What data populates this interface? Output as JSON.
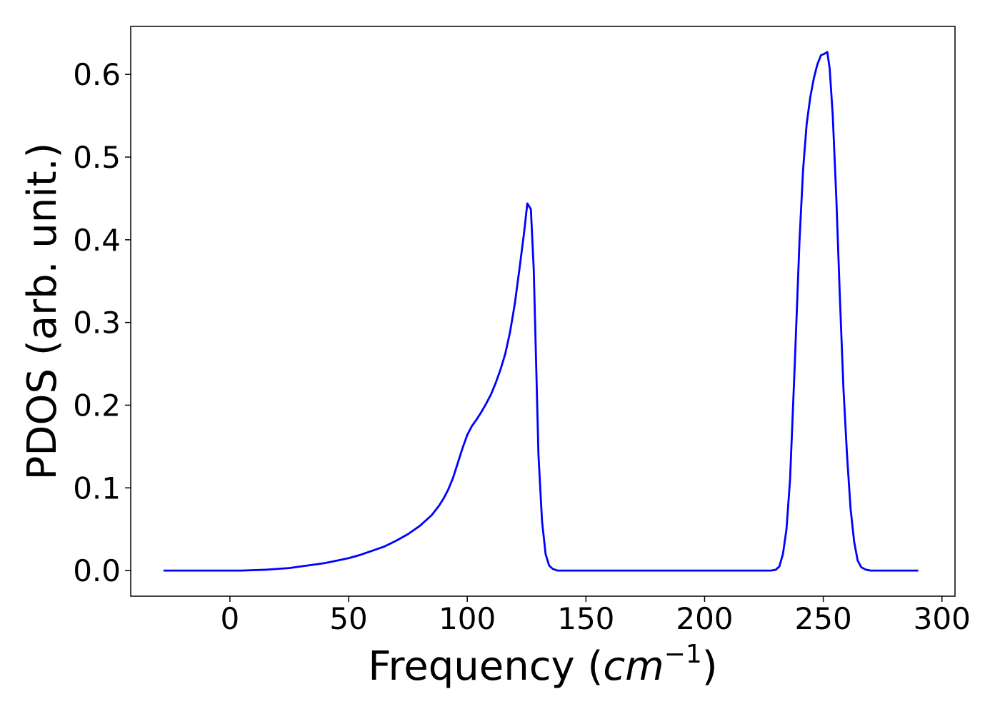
{
  "chart_data": {
    "type": "line",
    "xlabel_parts": [
      "Frequency (",
      "cm",
      "−1",
      ")"
    ],
    "ylabel": "PDOS (arb. unit.)",
    "x": [
      -28,
      -20,
      -10,
      0,
      5,
      10,
      15,
      20,
      25,
      30,
      35,
      40,
      45,
      50,
      55,
      60,
      65,
      70,
      75,
      80,
      85,
      88,
      90,
      92,
      94,
      96,
      98,
      100,
      102,
      104,
      106,
      108,
      110,
      112,
      114,
      116,
      118,
      120,
      122,
      124,
      125.3,
      126.8,
      128,
      130,
      131.5,
      133,
      134.5,
      136,
      138,
      150,
      200,
      228,
      230,
      231.5,
      233,
      234.5,
      236,
      238,
      240,
      241.5,
      243,
      244.5,
      246,
      247.5,
      249,
      250.5,
      251.7,
      252.7,
      254,
      255.5,
      257,
      258.5,
      260,
      261.5,
      263,
      264.5,
      266,
      268,
      270,
      290
    ],
    "series": [
      {
        "name": "PDOS",
        "color": "#0000ff",
        "values": [
          0,
          0,
          0,
          0,
          0,
          0.0005,
          0.001,
          0.002,
          0.003,
          0.005,
          0.007,
          0.009,
          0.012,
          0.015,
          0.019,
          0.024,
          0.029,
          0.036,
          0.044,
          0.054,
          0.067,
          0.078,
          0.087,
          0.098,
          0.112,
          0.13,
          0.148,
          0.164,
          0.175,
          0.183,
          0.192,
          0.202,
          0.213,
          0.227,
          0.243,
          0.262,
          0.288,
          0.322,
          0.365,
          0.41,
          0.444,
          0.437,
          0.365,
          0.14,
          0.06,
          0.02,
          0.006,
          0.002,
          0,
          0,
          0,
          0,
          0.001,
          0.005,
          0.02,
          0.05,
          0.11,
          0.25,
          0.4,
          0.485,
          0.54,
          0.572,
          0.595,
          0.612,
          0.623,
          0.625,
          0.627,
          0.607,
          0.55,
          0.45,
          0.33,
          0.22,
          0.14,
          0.075,
          0.035,
          0.012,
          0.004,
          0.001,
          0,
          0
        ]
      }
    ],
    "xlim": [
      -41.8,
      305.5
    ],
    "ylim": [
      -0.031,
      0.658
    ],
    "xticks": [
      0,
      50,
      100,
      150,
      200,
      250,
      300
    ],
    "yticks": [
      {
        "value": 0,
        "label": "0.0"
      },
      0.1,
      0.2,
      0.3,
      0.4,
      0.5,
      0.6
    ],
    "grid": false
  }
}
